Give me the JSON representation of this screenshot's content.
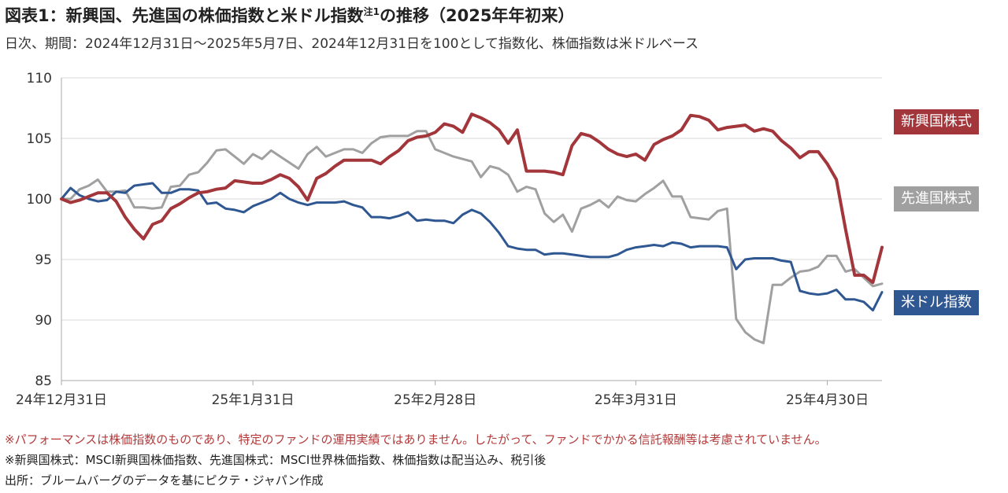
{
  "title": {
    "text": "図表1：新興国、先進国の株価指数と米ドル指数",
    "sup": "注1",
    "suffix": "の推移（2025年年初来）"
  },
  "subtitle": "日次、期間：2024年12月31日～2025年5月7日、2024年12月31日を100として指数化、株価指数は米ドルベース",
  "notes": [
    "※パフォーマンスは株価指数のものであり、特定のファンドの運用実績ではありません。したがって、ファンドでかかる信託報酬等は考慮されていません。",
    "※新興国株式：MSCI新興国株価指数、先進国株式：MSCI世界株価指数、株価指数は配当込み、税引後",
    "出所：ブルームバーグのデータを基にピクテ・ジャパン作成"
  ],
  "colors": {
    "emerging": "#a3363b",
    "developed": "#a0a0a0",
    "usd": "#2f5791",
    "note_red": "#b33a3a",
    "axis": "#aaaaaa"
  },
  "chart_data": {
    "type": "line",
    "ylim": [
      85,
      110
    ],
    "yticks": [
      85,
      90,
      95,
      100,
      105,
      110
    ],
    "xlim": [
      0,
      90
    ],
    "xticks": [
      {
        "x": 0,
        "label": "24年12月31日"
      },
      {
        "x": 21,
        "label": "25年1月31日"
      },
      {
        "x": 41,
        "label": "25年2月28日"
      },
      {
        "x": 63,
        "label": "25年3月31日"
      },
      {
        "x": 84,
        "label": "25年4月30日"
      }
    ],
    "grid": "horizontal",
    "series": [
      {
        "name": "新興国株式",
        "key": "emerging",
        "values": [
          100.0,
          99.7,
          99.9,
          100.2,
          100.5,
          100.5,
          99.8,
          98.5,
          97.5,
          96.7,
          97.9,
          98.2,
          99.2,
          99.6,
          100.1,
          100.5,
          100.6,
          100.8,
          100.9,
          101.5,
          101.4,
          101.3,
          101.3,
          101.6,
          102.0,
          101.7,
          101.0,
          99.9,
          101.7,
          102.1,
          102.7,
          103.2,
          103.2,
          103.2,
          103.2,
          102.9,
          103.5,
          104.0,
          104.8,
          105.1,
          105.2,
          105.5,
          106.2,
          106.0,
          105.5,
          107.0,
          106.7,
          106.3,
          105.7,
          104.6,
          105.7,
          102.3,
          102.3,
          102.3,
          102.2,
          102.0,
          104.4,
          105.4,
          105.2,
          104.7,
          104.1,
          103.7,
          103.5,
          103.7,
          103.2,
          104.5,
          104.9,
          105.2,
          105.7,
          106.9,
          106.8,
          106.5,
          105.7,
          105.9,
          106.0,
          106.1,
          105.6,
          105.8,
          105.6,
          104.8,
          104.2,
          103.4,
          103.9,
          103.9,
          102.9,
          101.6,
          97.5,
          93.7,
          93.7,
          93.1,
          96.0
        ],
        "label": "新興国株式"
      },
      {
        "name": "先進国株式",
        "key": "developed",
        "values": [
          100.0,
          100.0,
          100.8,
          101.1,
          101.6,
          100.6,
          100.6,
          100.7,
          99.3,
          99.3,
          99.2,
          99.3,
          101.0,
          101.1,
          102.0,
          102.2,
          103.0,
          104.0,
          104.1,
          103.5,
          102.9,
          103.7,
          103.3,
          104.0,
          103.5,
          103.0,
          102.5,
          103.7,
          104.3,
          103.5,
          103.8,
          104.1,
          104.1,
          103.8,
          104.6,
          105.1,
          105.2,
          105.2,
          105.2,
          105.6,
          105.6,
          104.1,
          103.8,
          103.5,
          103.3,
          103.1,
          101.8,
          102.7,
          102.5,
          102.0,
          100.6,
          101.0,
          100.8,
          98.8,
          98.1,
          98.7,
          97.3,
          99.2,
          99.5,
          99.9,
          99.3,
          100.2,
          99.9,
          99.8,
          100.4,
          100.9,
          101.5,
          100.2,
          100.2,
          98.5,
          98.4,
          98.3,
          99.0,
          99.2,
          90.1,
          89.0,
          88.4,
          88.1,
          92.9,
          92.9,
          93.5,
          94.0,
          94.1,
          94.4,
          95.3,
          95.3,
          94.0,
          94.2,
          93.5,
          92.8,
          93.0
        ],
        "label": "先進国株式"
      },
      {
        "name": "米ドル指数",
        "key": "usd",
        "values": [
          100.0,
          100.9,
          100.3,
          100.0,
          99.8,
          99.9,
          100.6,
          100.5,
          101.1,
          101.2,
          101.3,
          100.5,
          100.5,
          100.8,
          100.8,
          100.7,
          99.6,
          99.7,
          99.2,
          99.1,
          98.9,
          99.4,
          99.7,
          100.0,
          100.5,
          100.0,
          99.7,
          99.5,
          99.7,
          99.7,
          99.7,
          99.8,
          99.5,
          99.3,
          98.5,
          98.5,
          98.4,
          98.6,
          98.9,
          98.2,
          98.3,
          98.2,
          98.2,
          98.0,
          98.7,
          99.1,
          98.8,
          98.1,
          97.2,
          96.1,
          95.9,
          95.8,
          95.8,
          95.4,
          95.5,
          95.5,
          95.4,
          95.3,
          95.2,
          95.2,
          95.2,
          95.4,
          95.8,
          96.0,
          96.1,
          96.2,
          96.1,
          96.4,
          96.3,
          96.0,
          96.1,
          96.1,
          96.1,
          96.0,
          94.2,
          95.0,
          95.1,
          95.1,
          95.1,
          94.9,
          94.8,
          92.4,
          92.2,
          92.1,
          92.2,
          92.5,
          91.7,
          91.7,
          91.5,
          90.8,
          92.3
        ],
        "label": "米ドル指数"
      }
    ]
  }
}
